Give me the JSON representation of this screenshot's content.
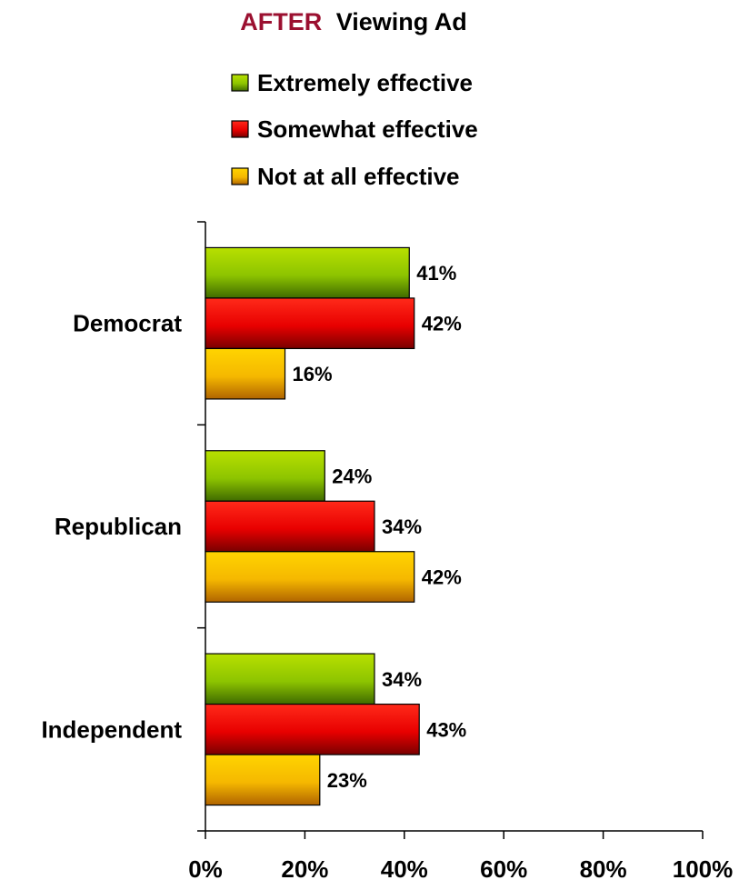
{
  "chart_data": {
    "type": "bar",
    "orientation": "horizontal",
    "title_prefix": "AFTER",
    "title": "Viewing Ad",
    "categories": [
      "Democrat",
      "Republican",
      "Independent"
    ],
    "series": [
      {
        "name": "Extremely effective",
        "values": [
          41,
          24,
          34
        ],
        "value_labels": [
          "41%",
          "24%",
          "34%"
        ],
        "color": "#8dc400"
      },
      {
        "name": "Somewhat effective",
        "values": [
          42,
          34,
          43
        ],
        "value_labels": [
          "42%",
          "34%",
          "43%"
        ],
        "color": "#e80000"
      },
      {
        "name": "Not at all effective",
        "values": [
          16,
          42,
          23
        ],
        "value_labels": [
          "16%",
          "42%",
          "23%"
        ],
        "color": "#f5b800"
      }
    ],
    "xlim": [
      0,
      100
    ],
    "x_ticks": [
      0,
      20,
      40,
      60,
      80,
      100
    ],
    "x_tick_labels": [
      "0%",
      "20%",
      "40%",
      "60%",
      "80%",
      "100%"
    ],
    "legend_position": "top",
    "grid": false
  }
}
